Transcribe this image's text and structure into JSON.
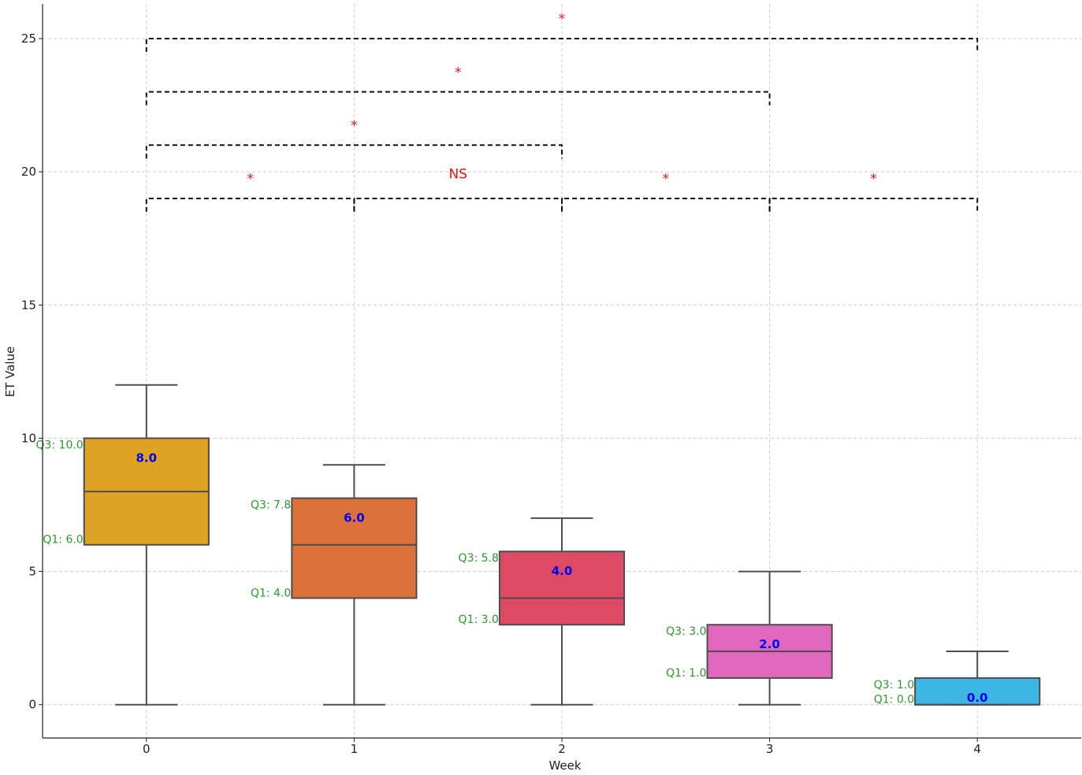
{
  "chart_data": {
    "type": "box",
    "title": "",
    "xlabel": "Week",
    "ylabel": "ET Value",
    "ylim": [
      -1.25,
      26.3
    ],
    "xlim": [
      -0.5,
      4.5
    ],
    "yticks": [
      0,
      5,
      10,
      15,
      20,
      25
    ],
    "grid": true,
    "categories": [
      "0",
      "1",
      "2",
      "3",
      "4"
    ],
    "boxes": [
      {
        "x": 0,
        "whisker_low": 0,
        "q1": 6.0,
        "median": 8.0,
        "q3": 10.0,
        "whisker_high": 12,
        "color": "#DFA222",
        "q1_label": "Q1: 6.0",
        "q3_label": "Q3: 10.0",
        "median_label": "8.0"
      },
      {
        "x": 1,
        "whisker_low": 0,
        "q1": 4.0,
        "median": 6.0,
        "q3": 7.75,
        "whisker_high": 9,
        "color": "#DB723A",
        "q1_label": "Q1: 4.0",
        "q3_label": "Q3: 7.8",
        "median_label": "6.0"
      },
      {
        "x": 2,
        "whisker_low": 0,
        "q1": 3.0,
        "median": 4.0,
        "q3": 5.75,
        "whisker_high": 7,
        "color": "#DE4A64",
        "q1_label": "Q1: 3.0",
        "q3_label": "Q3: 5.8",
        "median_label": "4.0"
      },
      {
        "x": 3,
        "whisker_low": 0,
        "q1": 1.0,
        "median": 2.0,
        "q3": 3.0,
        "whisker_high": 5,
        "color": "#E268BE",
        "q1_label": "Q1: 1.0",
        "q3_label": "Q3: 3.0",
        "median_label": "2.0"
      },
      {
        "x": 4,
        "whisker_low": 0,
        "q1": 0.0,
        "median": 0.0,
        "q3": 1.0,
        "whisker_high": 2,
        "color": "#3DB5E5",
        "q1_label": "Q1: 0.0",
        "q3_label": "Q3: 1.0",
        "median_label": "0.0"
      }
    ],
    "brackets": [
      {
        "from": 0,
        "to": 1,
        "y": 19,
        "label": "*"
      },
      {
        "from": 1,
        "to": 2,
        "y": 19,
        "label": "NS"
      },
      {
        "from": 2,
        "to": 3,
        "y": 19,
        "label": "*"
      },
      {
        "from": 3,
        "to": 4,
        "y": 19,
        "label": "*"
      },
      {
        "from": 0,
        "to": 2,
        "y": 21,
        "label": "*"
      },
      {
        "from": 0,
        "to": 3,
        "y": 23,
        "label": "*"
      },
      {
        "from": 0,
        "to": 4,
        "y": 25,
        "label": "*"
      }
    ],
    "colors": {
      "box_edge": "#4d4d4d",
      "bracket": "#111111",
      "significance": "#ee1111",
      "quartile_text": "#2a9a2a",
      "median_text": "#0000ee"
    }
  }
}
